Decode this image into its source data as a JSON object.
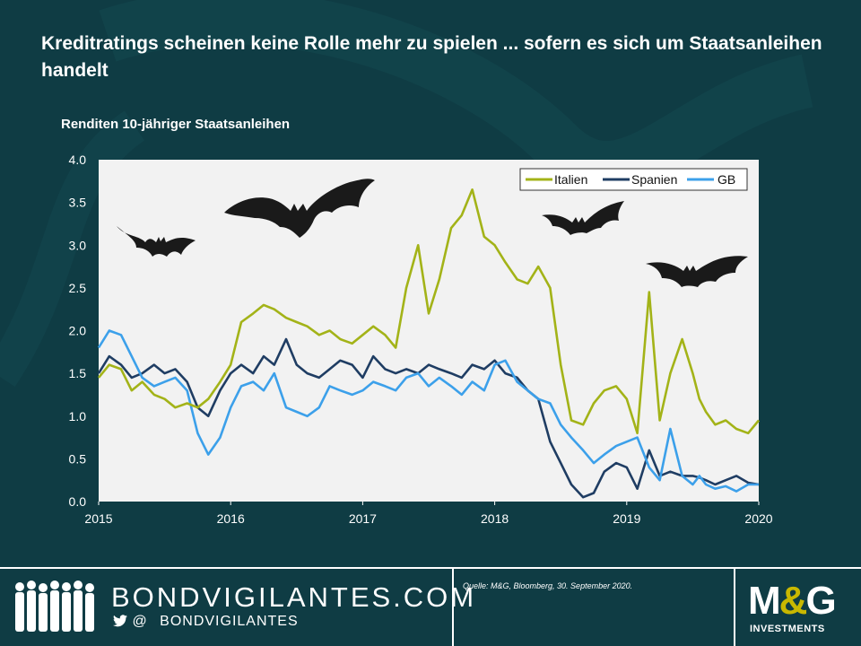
{
  "title": "Kreditratings scheinen keine Rolle mehr zu spielen ... sofern es sich um Staatsanleihen handelt",
  "chart_data": {
    "type": "line",
    "title": "Kreditratings scheinen keine Rolle mehr zu spielen ... sofern es sich um Staatsanleihen handelt",
    "subtitle": "Renditen 10-jähriger Staatsanleihen",
    "xlabel": "",
    "ylabel": "",
    "xlim": [
      2015.0,
      2020.0
    ],
    "ylim": [
      0.0,
      4.0
    ],
    "x_ticks": [
      {
        "value": 2015,
        "label": "2015"
      },
      {
        "value": 2016,
        "label": "2016"
      },
      {
        "value": 2017,
        "label": "2017"
      },
      {
        "value": 2018,
        "label": "2018"
      },
      {
        "value": 2019,
        "label": "2019"
      },
      {
        "value": 2020,
        "label": "2020"
      }
    ],
    "y_ticks": [
      {
        "value": 0.0,
        "label": "0.0"
      },
      {
        "value": 0.5,
        "label": "0.5"
      },
      {
        "value": 1.0,
        "label": "1.0"
      },
      {
        "value": 1.5,
        "label": "1.5"
      },
      {
        "value": 2.0,
        "label": "2.0"
      },
      {
        "value": 2.5,
        "label": "2.5"
      },
      {
        "value": 3.0,
        "label": "3.0"
      },
      {
        "value": 3.5,
        "label": "3.5"
      },
      {
        "value": 4.0,
        "label": "4.0"
      }
    ],
    "legend_position": "top-right",
    "series": [
      {
        "name": "Italien",
        "color": "#a3b318",
        "x": [
          2015.0,
          2015.08,
          2015.17,
          2015.25,
          2015.33,
          2015.42,
          2015.5,
          2015.58,
          2015.67,
          2015.75,
          2015.83,
          2015.92,
          2016.0,
          2016.08,
          2016.17,
          2016.25,
          2016.33,
          2016.42,
          2016.5,
          2016.58,
          2016.67,
          2016.75,
          2016.83,
          2016.92,
          2017.0,
          2017.08,
          2017.17,
          2017.25,
          2017.33,
          2017.42,
          2017.5,
          2017.58,
          2017.67,
          2017.75,
          2017.83,
          2017.92,
          2018.0,
          2018.08,
          2018.17,
          2018.25,
          2018.33,
          2018.42,
          2018.5,
          2018.58,
          2018.67,
          2018.75,
          2018.83,
          2018.92,
          2019.0,
          2019.08,
          2019.17,
          2019.25,
          2019.33,
          2019.42,
          2019.5,
          2019.55,
          2019.6,
          2019.67,
          2019.75,
          2019.83,
          2019.92,
          2020.0
        ],
        "values": [
          1.45,
          1.6,
          1.55,
          1.3,
          1.4,
          1.25,
          1.2,
          1.1,
          1.15,
          1.1,
          1.2,
          1.4,
          1.6,
          2.1,
          2.2,
          2.3,
          2.25,
          2.15,
          2.1,
          2.05,
          1.95,
          2.0,
          1.9,
          1.85,
          1.95,
          2.05,
          1.95,
          1.8,
          2.5,
          3.0,
          2.2,
          2.6,
          3.2,
          3.35,
          3.65,
          3.1,
          3.0,
          2.8,
          2.6,
          2.55,
          2.75,
          2.5,
          1.6,
          0.95,
          0.9,
          1.15,
          1.3,
          1.35,
          1.2,
          0.8,
          2.45,
          0.95,
          1.5,
          1.9,
          1.5,
          1.2,
          1.05,
          0.9,
          0.95,
          0.85,
          0.8,
          0.95
        ]
      },
      {
        "name": "Spanien",
        "color": "#1f3d63",
        "x": [
          2015.0,
          2015.08,
          2015.17,
          2015.25,
          2015.33,
          2015.42,
          2015.5,
          2015.58,
          2015.67,
          2015.75,
          2015.83,
          2015.92,
          2016.0,
          2016.08,
          2016.17,
          2016.25,
          2016.33,
          2016.42,
          2016.5,
          2016.58,
          2016.67,
          2016.75,
          2016.83,
          2016.92,
          2017.0,
          2017.08,
          2017.17,
          2017.25,
          2017.33,
          2017.42,
          2017.5,
          2017.58,
          2017.67,
          2017.75,
          2017.83,
          2017.92,
          2018.0,
          2018.08,
          2018.17,
          2018.25,
          2018.33,
          2018.42,
          2018.5,
          2018.58,
          2018.67,
          2018.75,
          2018.83,
          2018.92,
          2019.0,
          2019.08,
          2019.17,
          2019.25,
          2019.33,
          2019.42,
          2019.5,
          2019.55,
          2019.6,
          2019.67,
          2019.75,
          2019.83,
          2019.92,
          2020.0
        ],
        "values": [
          1.5,
          1.7,
          1.6,
          1.45,
          1.5,
          1.6,
          1.5,
          1.55,
          1.4,
          1.1,
          1.0,
          1.3,
          1.5,
          1.6,
          1.5,
          1.7,
          1.6,
          1.9,
          1.6,
          1.5,
          1.45,
          1.55,
          1.65,
          1.6,
          1.45,
          1.7,
          1.55,
          1.5,
          1.55,
          1.5,
          1.6,
          1.55,
          1.5,
          1.45,
          1.6,
          1.55,
          1.65,
          1.5,
          1.45,
          1.3,
          1.2,
          0.7,
          0.45,
          0.2,
          0.05,
          0.1,
          0.35,
          0.45,
          0.4,
          0.15,
          0.6,
          0.3,
          0.35,
          0.3,
          0.3,
          0.28,
          0.25,
          0.2,
          0.25,
          0.3,
          0.22,
          0.2
        ]
      },
      {
        "name": "GB",
        "color": "#3ca0ea",
        "x": [
          2015.0,
          2015.08,
          2015.17,
          2015.25,
          2015.33,
          2015.42,
          2015.5,
          2015.58,
          2015.67,
          2015.75,
          2015.83,
          2015.92,
          2016.0,
          2016.08,
          2016.17,
          2016.25,
          2016.33,
          2016.42,
          2016.5,
          2016.58,
          2016.67,
          2016.75,
          2016.83,
          2016.92,
          2017.0,
          2017.08,
          2017.17,
          2017.25,
          2017.33,
          2017.42,
          2017.5,
          2017.58,
          2017.67,
          2017.75,
          2017.83,
          2017.92,
          2018.0,
          2018.08,
          2018.17,
          2018.25,
          2018.33,
          2018.42,
          2018.5,
          2018.58,
          2018.67,
          2018.75,
          2018.83,
          2018.92,
          2019.0,
          2019.08,
          2019.17,
          2019.25,
          2019.33,
          2019.42,
          2019.5,
          2019.55,
          2019.6,
          2019.67,
          2019.75,
          2019.83,
          2019.92,
          2020.0
        ],
        "values": [
          1.8,
          2.0,
          1.95,
          1.7,
          1.45,
          1.35,
          1.4,
          1.45,
          1.3,
          0.8,
          0.55,
          0.75,
          1.1,
          1.35,
          1.4,
          1.3,
          1.5,
          1.1,
          1.05,
          1.0,
          1.1,
          1.35,
          1.3,
          1.25,
          1.3,
          1.4,
          1.35,
          1.3,
          1.45,
          1.5,
          1.35,
          1.45,
          1.35,
          1.25,
          1.4,
          1.3,
          1.6,
          1.65,
          1.4,
          1.3,
          1.2,
          1.15,
          0.9,
          0.75,
          0.6,
          0.45,
          0.55,
          0.65,
          0.7,
          0.75,
          0.4,
          0.25,
          0.85,
          0.3,
          0.2,
          0.3,
          0.2,
          0.15,
          0.18,
          0.12,
          0.2,
          0.2
        ]
      }
    ]
  },
  "footer": {
    "brand": "BONDVIGILANTES.COM",
    "handle_at": "@",
    "handle": "BONDVIGILANTES",
    "source": "Quelle: M&G, Bloomberg, 30. September 2020.",
    "logo_text_m": "M",
    "logo_text_amp": "&",
    "logo_text_g": "G",
    "logo_sub": "INVESTMENTS"
  },
  "colors": {
    "background": "#0f3c44",
    "plot_area": "#f2f2f2",
    "text": "#ffffff"
  }
}
